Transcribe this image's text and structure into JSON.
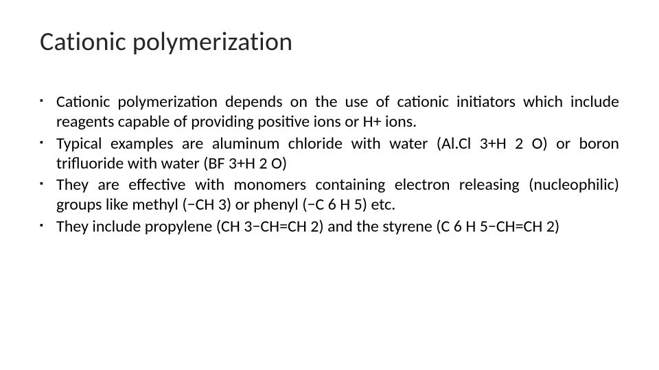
{
  "title": "Cationic polymerization",
  "bullets": [
    "Cationic polymerization depends on the use of cationic initiators which include reagents capable of providing positive ions or H+ ions.",
    "Typical examples are aluminum chloride with water (Al.Cl 3+H 2 O) or boron trifluoride with water (BF 3+H 2 O)",
    "They are effective with monomers containing electron releasing (nucleophilic) groups like methyl (−CH 3) or phenyl (−C 6 H 5) etc.",
    "They include propylene (CH 3−CH=CH 2) and the styrene (C 6 H 5−CH=CH 2)"
  ],
  "style": {
    "background_color": "#ffffff",
    "title_color": "#262626",
    "title_fontsize": 38,
    "body_color": "#000000",
    "body_fontsize": 24,
    "bullet_marker": "▪",
    "text_align": "justify",
    "font_family": "Calibri"
  }
}
